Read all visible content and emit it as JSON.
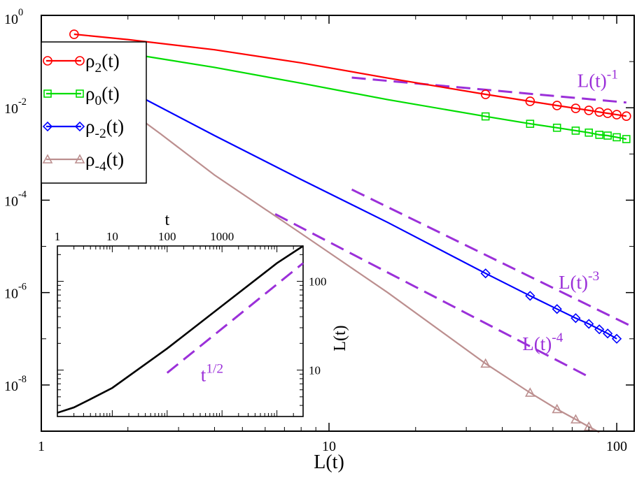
{
  "chart_data": [
    {
      "type": "line",
      "title": "",
      "xlabel": "L(t)",
      "ylabel": "",
      "x_scale": "log",
      "y_scale": "log",
      "xlim": [
        1,
        115
      ],
      "ylim": [
        1e-09,
        1
      ],
      "x_tick_labels": [
        {
          "value": 1,
          "label": "1"
        },
        {
          "value": 10,
          "label": "10"
        },
        {
          "value": 100,
          "label": "100"
        }
      ],
      "y_tick_labels": [
        {
          "value": 1,
          "base": "10",
          "exp": "0"
        },
        {
          "value": 0.01,
          "base": "10",
          "exp": "-2"
        },
        {
          "value": 0.0001,
          "base": "10",
          "exp": "-4"
        },
        {
          "value": 1e-06,
          "base": "10",
          "exp": "-6"
        },
        {
          "value": 1e-08,
          "base": "10",
          "exp": "-8"
        }
      ],
      "legend": {
        "position": "upper-left",
        "entries": [
          {
            "base": "ρ",
            "sub": "2",
            "suffix": "(t)",
            "color": "#ff0000",
            "marker": "circle"
          },
          {
            "base": "ρ",
            "sub": "0",
            "suffix": "(t)",
            "color": "#00dd00",
            "marker": "square"
          },
          {
            "base": "ρ",
            "sub": "-2",
            "suffix": "(t)",
            "color": "#0000ff",
            "marker": "diamond"
          },
          {
            "base": "ρ",
            "sub": "-4",
            "suffix": "(t)",
            "color": "#bc8f8f",
            "marker": "triangle"
          }
        ]
      },
      "series": [
        {
          "name": "ρ2(t)",
          "color": "#ff0000",
          "marker": "circle",
          "x": [
            1.3,
            2,
            4,
            8,
            16,
            35,
            50,
            62,
            72,
            80,
            87,
            93,
            100,
            108
          ],
          "y": [
            0.39,
            0.3,
            0.18,
            0.094,
            0.044,
            0.0195,
            0.0138,
            0.0112,
            0.0097,
            0.0088,
            0.0081,
            0.0076,
            0.0071,
            0.0066
          ],
          "marker_x": [
            1.3,
            35,
            50,
            62,
            72,
            80,
            87,
            93,
            100,
            108
          ]
        },
        {
          "name": "ρ0(t)",
          "color": "#00dd00",
          "marker": "square",
          "x": [
            1.3,
            2,
            4,
            8,
            16,
            35,
            50,
            62,
            72,
            80,
            87,
            93,
            100,
            108
          ],
          "y": [
            0.22,
            0.15,
            0.075,
            0.034,
            0.015,
            0.0065,
            0.0045,
            0.0037,
            0.0032,
            0.0029,
            0.0026,
            0.0025,
            0.0023,
            0.0021
          ],
          "marker_x": [
            1.3,
            35,
            50,
            62,
            72,
            80,
            87,
            93,
            100,
            108
          ]
        },
        {
          "name": "ρ-2(t)",
          "color": "#0000ff",
          "marker": "diamond",
          "x": [
            1.3,
            2,
            4,
            8,
            16,
            35,
            50,
            62,
            72,
            80,
            87,
            93,
            100
          ],
          "y": [
            0.09,
            0.024,
            0.0025,
            0.00028,
            3.3e-05,
            2.6e-06,
            8.5e-07,
            4.4e-07,
            2.8e-07,
            2.1e-07,
            1.6e-07,
            1.3e-07,
            1e-07
          ],
          "marker_x": [
            35,
            50,
            62,
            72,
            80,
            87,
            93,
            100
          ]
        },
        {
          "name": "ρ-4(t)",
          "color": "#bc8f8f",
          "marker": "triangle",
          "x": [
            1.3,
            2,
            2.6,
            4,
            8,
            16,
            35,
            50,
            62,
            72,
            80,
            87
          ],
          "y": [
            0.045,
            0.009,
            0.0027,
            0.00035,
            1.9e-05,
            1e-06,
            2.9e-08,
            6.8e-09,
            3e-09,
            1.8e-09,
            1.25e-09,
            9.5e-10
          ],
          "marker_x": [
            35,
            50,
            62,
            72,
            80
          ]
        }
      ],
      "guide_lines": [
        {
          "label_base": "L(t)",
          "label_exp": "-1",
          "x": [
            12,
            108
          ],
          "y": [
            0.045,
            0.013
          ]
        },
        {
          "label_base": "L(t)",
          "label_exp": "-3",
          "x": [
            12,
            110
          ],
          "y": [
            0.00017,
            2e-07
          ]
        },
        {
          "label_base": "L(t)",
          "label_exp": "-4",
          "x": [
            6.5,
            80
          ],
          "y": [
            5e-05,
            1.5e-08
          ]
        }
      ]
    },
    {
      "type": "line",
      "title": "",
      "xlabel": "t",
      "ylabel": "L(t)",
      "x_scale": "log",
      "y_scale": "log",
      "xlim": [
        1,
        30000
      ],
      "ylim": [
        3,
        250
      ],
      "x_tick_labels": [
        {
          "value": 1,
          "label": "1"
        },
        {
          "value": 10,
          "label": "10"
        },
        {
          "value": 100,
          "label": "100"
        },
        {
          "value": 1000,
          "label": "1000"
        }
      ],
      "y_tick_labels": [
        {
          "value": 10,
          "label": "10"
        },
        {
          "value": 100,
          "label": "100"
        }
      ],
      "series": [
        {
          "color": "#000000",
          "x": [
            1,
            2,
            4,
            10,
            100,
            1000,
            10000,
            30000
          ],
          "y": [
            3.3,
            3.8,
            4.7,
            6.3,
            17.5,
            53,
            160,
            270
          ]
        }
      ],
      "guide_lines": [
        {
          "label_base": "t",
          "label_exp": "1/2",
          "x": [
            100,
            30000
          ],
          "y": [
            9.3,
            160
          ]
        }
      ]
    }
  ]
}
